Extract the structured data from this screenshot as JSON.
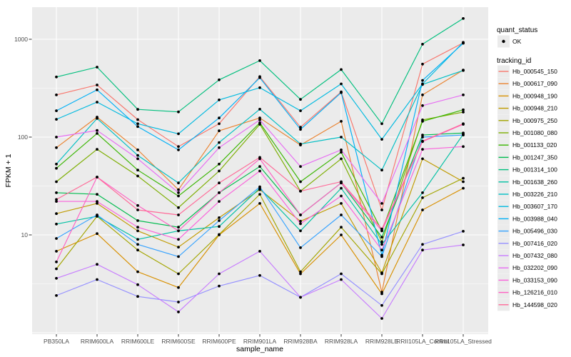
{
  "chart_data": {
    "type": "line",
    "title": "",
    "xlabel": "sample_name",
    "ylabel": "FPKM + 1",
    "yscale": "log10",
    "ylim": [
      1,
      2100
    ],
    "grid": "on",
    "legend_position": "right",
    "colors": {
      "panel_bg": "#EBEBEB",
      "grid": "#FFFFFF",
      "point": "#000000",
      "tick_text": "#4D4D4D",
      "axis_title_text": "#000000",
      "legend_key_bg": "#EBEBEB"
    },
    "yticks": [
      {
        "label": "10",
        "value": 10
      },
      {
        "label": "100",
        "value": 100
      },
      {
        "label": "1000",
        "value": 1000
      }
    ],
    "minor_ticks": [
      3.162,
      31.62,
      316.2
    ],
    "categories": [
      "PB350LA",
      "RRIM600LA",
      "RRIM600LE",
      "RRIM600SE",
      "RRIM600PE",
      "RRIM901LA",
      "RRIM928BA",
      "RRIM928LA",
      "RRIM928LE",
      "RRII105LA_Control",
      "RRII105LA_Stressed"
    ],
    "legend": {
      "quant_status": {
        "title": "quant_status",
        "items": [
          {
            "label": "OK"
          }
        ]
      },
      "tracking_id": {
        "title": "tracking_id"
      }
    },
    "series": [
      {
        "name": "Hb_000545_150",
        "color": "#F8766D",
        "values": [
          270,
          341,
          151,
          80,
          137,
          415,
          126,
          290,
          18,
          557,
          920
        ]
      },
      {
        "name": "Hb_000617_090",
        "color": "#EA8331",
        "values": [
          78,
          160,
          74,
          29,
          116,
          157,
          83,
          145,
          2.6,
          270,
          485
        ]
      },
      {
        "name": "Hb_000948_190",
        "color": "#D89000",
        "values": [
          6.8,
          10.3,
          4.2,
          2.9,
          10,
          21,
          4,
          10,
          2.5,
          18,
          30
        ]
      },
      {
        "name": "Hb_000948_210",
        "color": "#C09B00",
        "values": [
          16.5,
          21,
          11,
          7.5,
          15,
          29,
          13.8,
          21,
          4.1,
          60,
          35
        ]
      },
      {
        "name": "Hb_000975_250",
        "color": "#A3A500",
        "values": [
          4.5,
          15.5,
          7,
          4,
          10.1,
          26,
          4.2,
          12,
          4,
          24,
          38
        ]
      },
      {
        "name": "Hb_001080_080",
        "color": "#7CAE00",
        "values": [
          35,
          75,
          40,
          19,
          45,
          135,
          28,
          60,
          8.5,
          150,
          180
        ]
      },
      {
        "name": "Hb_001133_020",
        "color": "#39B600",
        "values": [
          48,
          109,
          46,
          25,
          53,
          140,
          35,
          70,
          11,
          145,
          190
        ]
      },
      {
        "name": "Hb_001247_350",
        "color": "#00BB4E",
        "values": [
          27,
          26,
          14,
          12,
          27,
          50,
          16,
          34,
          9.5,
          105,
          110
        ]
      },
      {
        "name": "Hb_001314_100",
        "color": "#00BF7D",
        "values": [
          412,
          519,
          192,
          181,
          385,
          605,
          243,
          490,
          137,
          890,
          1630
        ]
      },
      {
        "name": "Hb_001638_260",
        "color": "#00C1A3",
        "values": [
          12.9,
          15.5,
          9,
          11,
          12.2,
          30,
          11,
          30,
          8,
          27,
          107
        ]
      },
      {
        "name": "Hb_003226_210",
        "color": "#00BFC4",
        "values": [
          53,
          155,
          65,
          34,
          88,
          193,
          85,
          100,
          46,
          345,
          480
        ]
      },
      {
        "name": "Hb_003607_170",
        "color": "#00BAE0",
        "values": [
          152,
          228,
          137,
          108,
          240,
          320,
          186,
          350,
          95,
          350,
          930
        ]
      },
      {
        "name": "Hb_003988_040",
        "color": "#00B0F6",
        "values": [
          186,
          304,
          128,
          74,
          157,
          405,
          120,
          285,
          6.2,
          380,
          910
        ]
      },
      {
        "name": "Hb_005496_030",
        "color": "#35A2FF",
        "values": [
          9.2,
          16,
          8,
          6,
          14,
          31,
          7.4,
          16,
          6,
          100,
          105
        ]
      },
      {
        "name": "Hb_007416_020",
        "color": "#9590FF",
        "values": [
          2.4,
          3.5,
          2.35,
          2.06,
          3.0,
          3.85,
          2.3,
          4.0,
          1.9,
          8.0,
          10.9
        ]
      },
      {
        "name": "Hb_007432_080",
        "color": "#C77CFF",
        "values": [
          3.6,
          5.0,
          3.1,
          1.63,
          4.0,
          6.8,
          2.3,
          3.5,
          1.4,
          7.0,
          7.9
        ]
      },
      {
        "name": "Hb_032202_090",
        "color": "#E76BF3",
        "values": [
          100,
          117,
          60,
          27,
          78,
          150,
          50,
          74,
          21,
          210,
          270
        ]
      },
      {
        "name": "Hb_033153_090",
        "color": "#FA62DB",
        "values": [
          22,
          22,
          12,
          9,
          22,
          45,
          13,
          25,
          7,
          75,
          80
        ]
      },
      {
        "name": "Hb_126216_010",
        "color": "#FF61C3",
        "values": [
          5.3,
          39,
          20,
          11,
          27,
          60,
          16,
          34,
          11,
          90,
          135
        ]
      },
      {
        "name": "Hb_144598_020",
        "color": "#FF6A98",
        "values": [
          23,
          39,
          18,
          16,
          34,
          62,
          28,
          35,
          11.5,
          91,
          137
        ]
      }
    ]
  }
}
